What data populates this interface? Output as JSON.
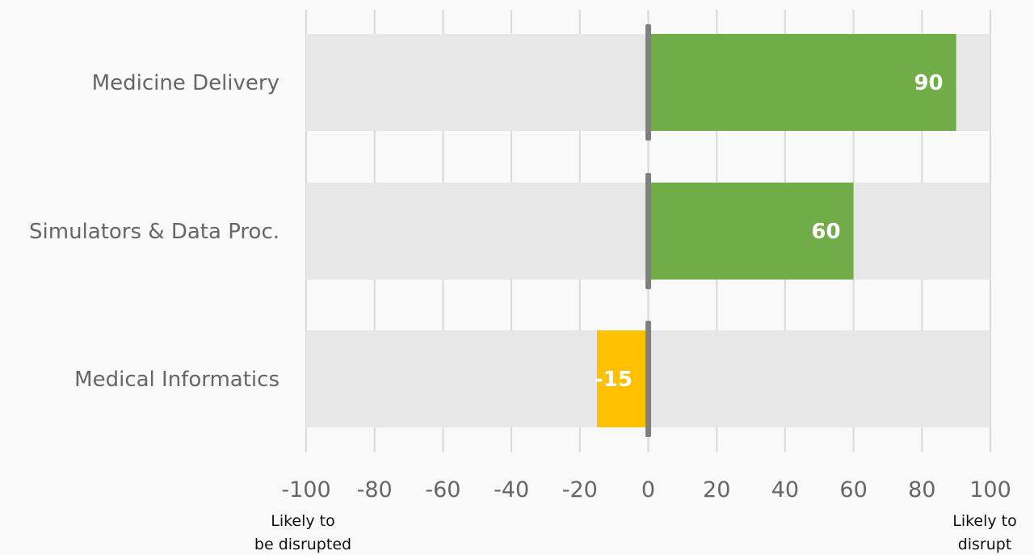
{
  "chart_data": {
    "type": "bar",
    "orientation": "horizontal",
    "title": "",
    "xlabel": "",
    "ylabel": "",
    "categories": [
      "Medicine Delivery",
      "Simulators & Data Proc.",
      "Medical Informatics"
    ],
    "values": [
      90,
      60,
      -15
    ],
    "value_labels": [
      "90",
      "60",
      "-15"
    ],
    "xlim": [
      -100,
      100
    ],
    "x_ticks": [
      -100,
      -80,
      -60,
      -40,
      -20,
      0,
      20,
      40,
      60,
      80,
      100
    ],
    "x_tick_labels": [
      "-100",
      "-80",
      "-60",
      "-40",
      "-20",
      "0",
      "20",
      "40",
      "60",
      "80",
      "100"
    ],
    "grid": "vertical",
    "legend": "none",
    "annotations": {
      "left": [
        "Likely to",
        "be disrupted"
      ],
      "right": [
        "Likely to",
        "disrupt"
      ]
    },
    "colors": {
      "positive": "#70ad47",
      "negative": "#ffc000",
      "track": "#e7e7e7",
      "zero_line": "#7f7f7f",
      "grid": "#d9d9d9",
      "background": "#f9f9f9"
    }
  }
}
